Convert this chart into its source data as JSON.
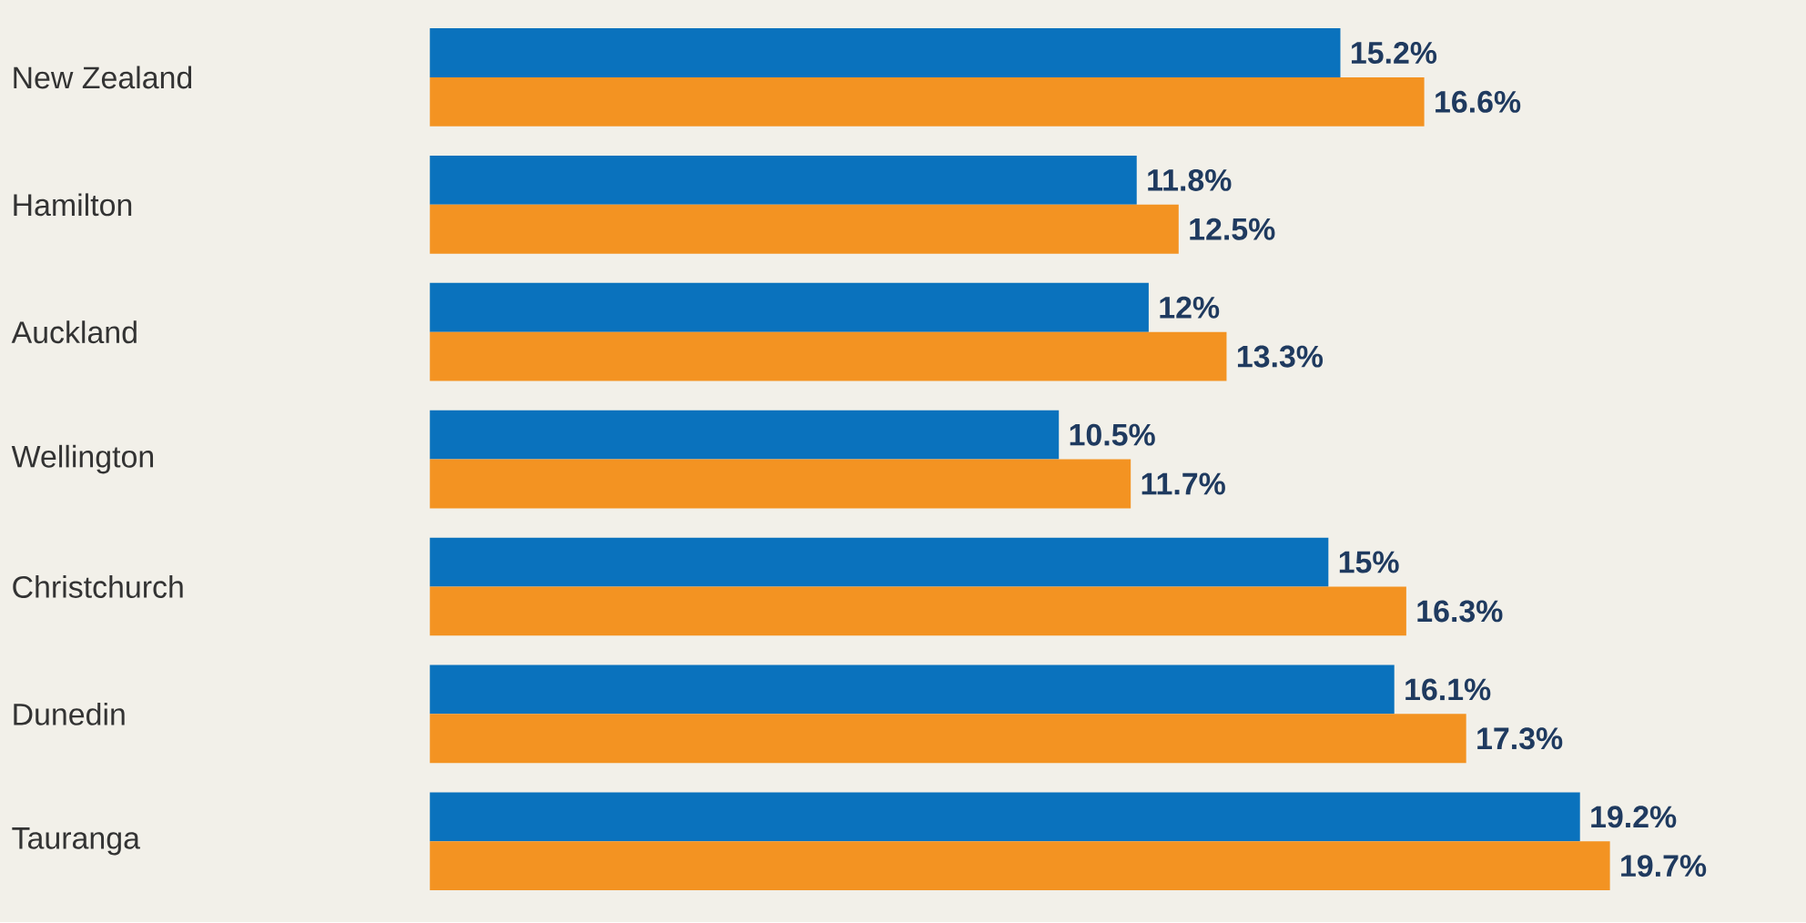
{
  "chart_data": {
    "type": "bar",
    "orientation": "horizontal",
    "categories": [
      "New Zealand",
      "Hamilton",
      "Auckland",
      "Wellington",
      "Christchurch",
      "Dunedin",
      "Tauranga"
    ],
    "series": [
      {
        "color": "#0a72bd",
        "values": [
          15.2,
          11.8,
          12,
          10.5,
          15,
          16.1,
          19.2
        ],
        "value_labels": [
          "15.2%",
          "11.8%",
          "12%",
          "10.5%",
          "15%",
          "16.1%",
          "19.2%"
        ]
      },
      {
        "color": "#f39322",
        "values": [
          16.6,
          12.5,
          13.3,
          11.7,
          16.3,
          17.3,
          19.7
        ],
        "value_labels": [
          "16.6%",
          "12.5%",
          "13.3%",
          "11.7%",
          "16.3%",
          "17.3%",
          "19.7%"
        ]
      }
    ]
  }
}
